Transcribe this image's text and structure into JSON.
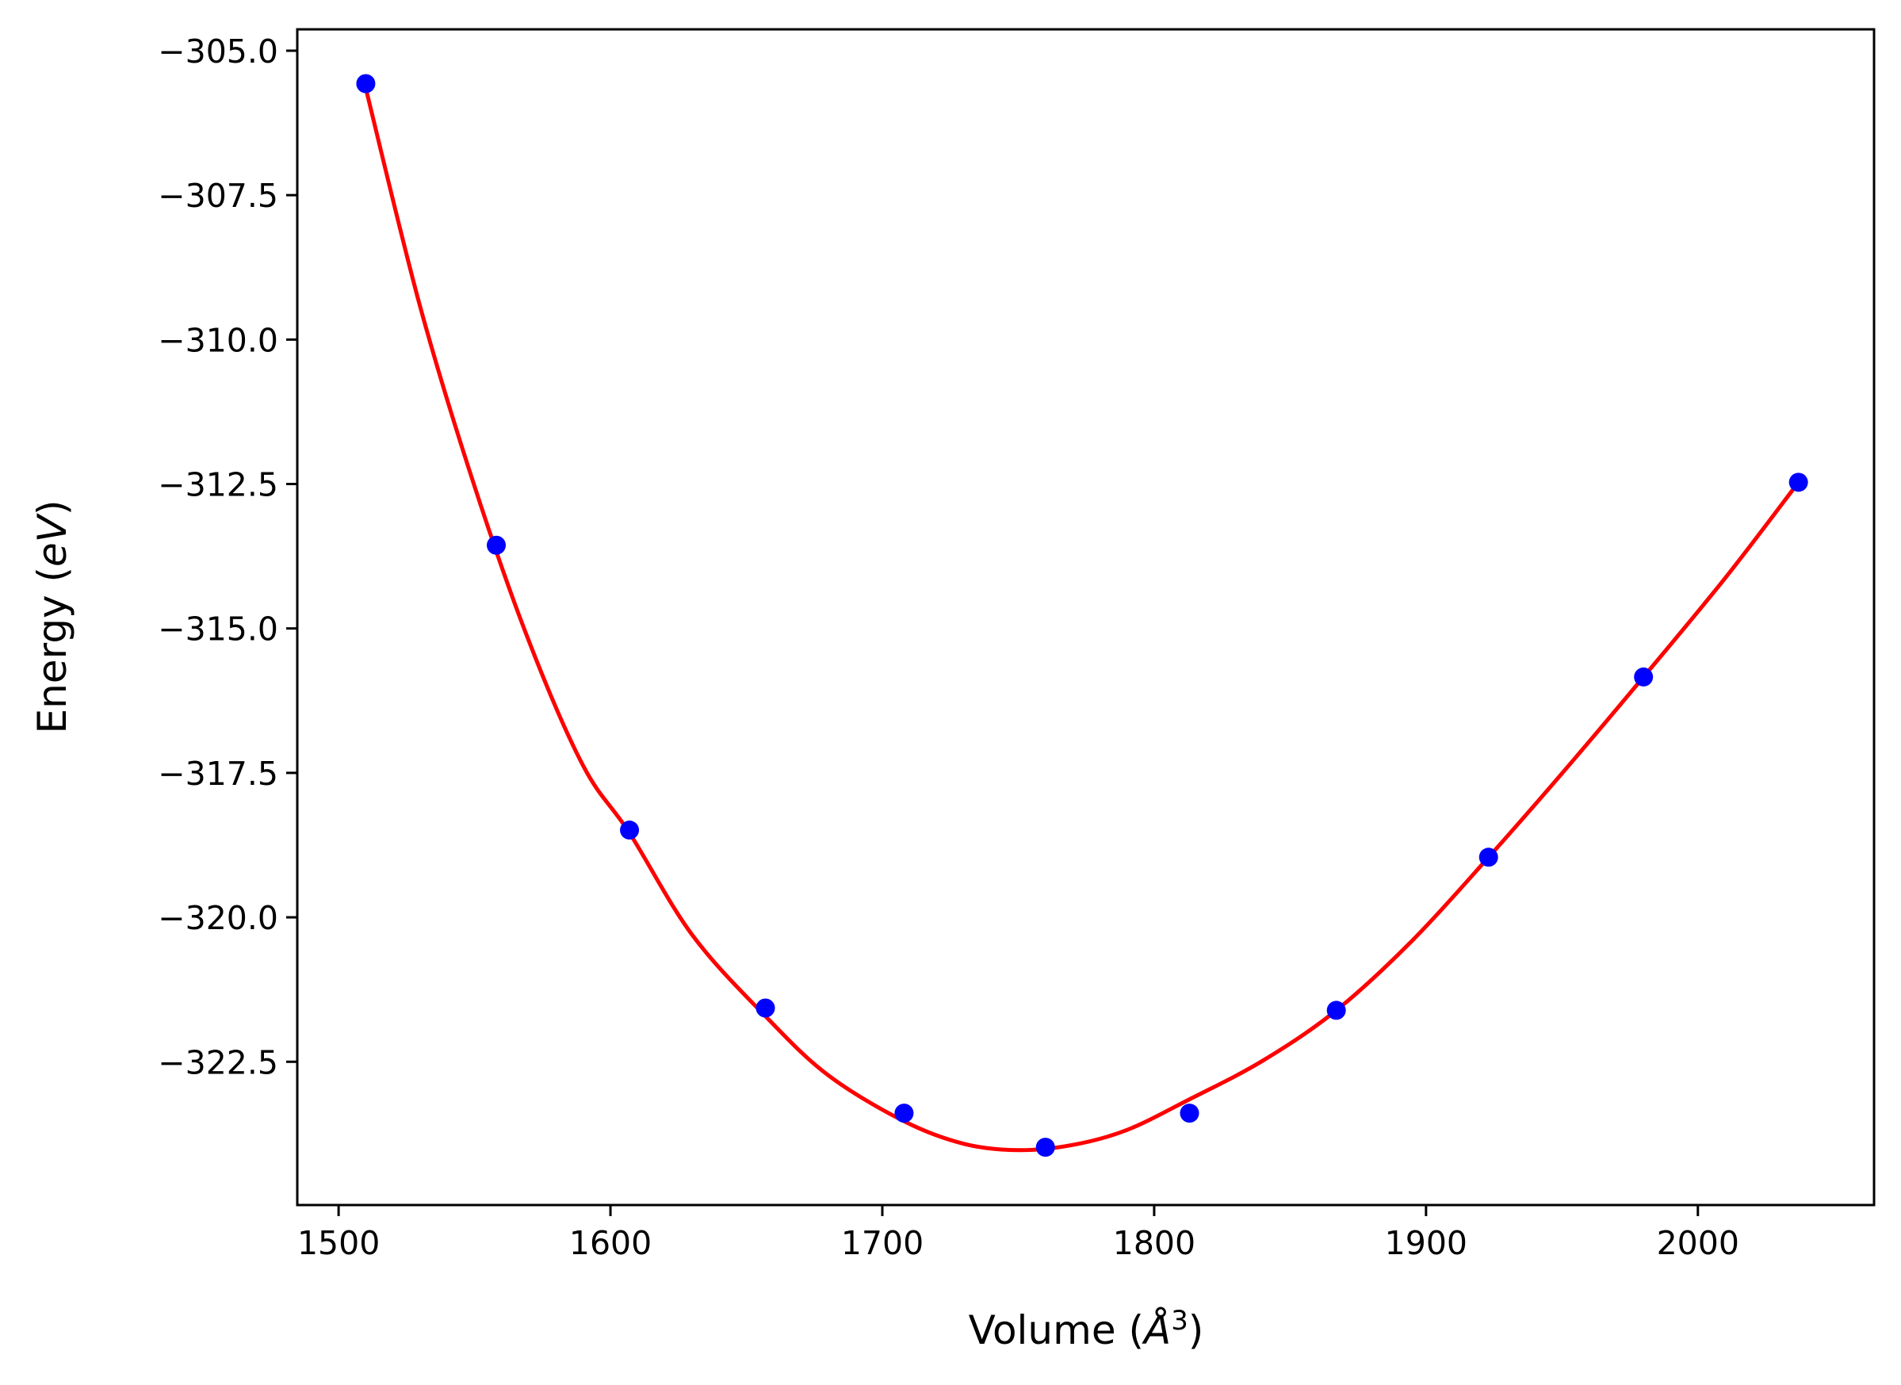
{
  "chart_data": {
    "type": "scatter",
    "title": "",
    "xlabel": {
      "text": "Volume (",
      "symbol": "Å",
      "superscript": "3",
      "suffix": ")"
    },
    "ylabel": {
      "text": "Energy (",
      "italic": "eV",
      "suffix": ")"
    },
    "xlim": [
      1484.8,
      2064.8
    ],
    "ylim": [
      -324.98,
      -304.63
    ],
    "xticks": [
      1500,
      1600,
      1700,
      1800,
      1900,
      2000
    ],
    "xtick_labels": [
      "1500",
      "1600",
      "1700",
      "1800",
      "1900",
      "2000"
    ],
    "yticks": [
      -305.0,
      -307.5,
      -310.0,
      -312.5,
      -315.0,
      -317.5,
      -320.0,
      -322.5
    ],
    "ytick_labels": [
      "−305.0",
      "−307.5",
      "−310.0",
      "−312.5",
      "−315.0",
      "−317.5",
      "−320.0",
      "−322.5"
    ],
    "grid": false,
    "series": [
      {
        "kind": "points",
        "color": "#0000ff",
        "x": [
          1510,
          1558,
          1607,
          1657,
          1708,
          1760,
          1813,
          1867,
          1923,
          1980,
          2037
        ],
        "y": [
          -305.57,
          -313.56,
          -318.49,
          -321.57,
          -323.39,
          -323.98,
          -323.39,
          -321.61,
          -318.96,
          -315.84,
          -312.47
        ]
      },
      {
        "kind": "fit-curve",
        "color": "#ff0000",
        "x": [
          1510,
          1530,
          1550,
          1570,
          1590,
          1607,
          1630,
          1657,
          1680,
          1708,
          1730,
          1750,
          1770,
          1790,
          1813,
          1840,
          1867,
          1895,
          1923,
          1950,
          1980,
          2010,
          2037
        ],
        "y": [
          -305.65,
          -309.43,
          -312.54,
          -315.22,
          -317.38,
          -318.54,
          -320.3,
          -321.71,
          -322.73,
          -323.53,
          -323.92,
          -324.03,
          -323.94,
          -323.68,
          -323.15,
          -322.48,
          -321.61,
          -320.4,
          -318.96,
          -317.51,
          -315.84,
          -314.13,
          -312.47
        ]
      }
    ]
  }
}
